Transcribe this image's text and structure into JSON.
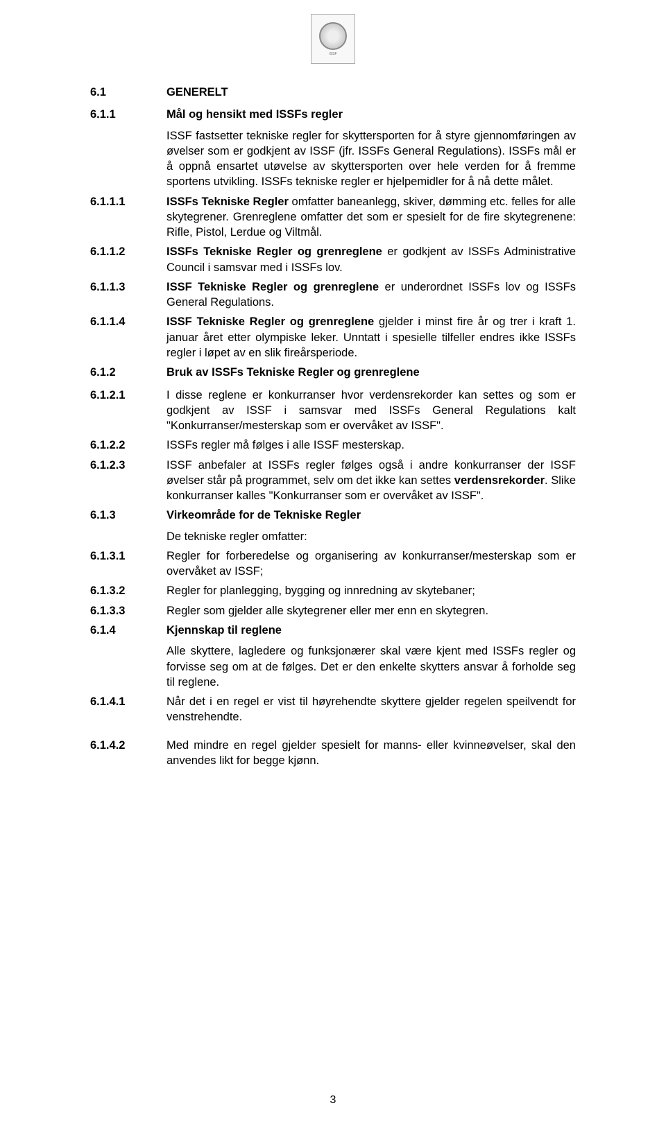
{
  "page_number": "3",
  "rows": [
    {
      "num": "6.1",
      "heading": "GENERELT",
      "text": ""
    },
    {
      "num": "6.1.1",
      "heading": "Mål og hensikt med ISSFs regler",
      "text": "ISSF fastsetter tekniske regler for skyttersporten for å styre gjennomføringen av øvelser som er godkjent av ISSF (jfr. ISSFs General Regulations). ISSFs mål er å oppnå ensartet utøvelse av skyttersporten over hele verden for å fremme sportens utvikling. ISSFs tekniske regler er hjelpemidler for å nå dette målet."
    },
    {
      "num": "6.1.1.1",
      "heading": "",
      "text": "<b>ISSFs Tekniske Regler</b> omfatter baneanlegg, skiver, dømming etc. felles for alle skytegrener. Grenreglene omfatter det som er spesielt for de fire skytegrenene: Rifle, Pistol, Lerdue og Viltmål."
    },
    {
      "num": "6.1.1.2",
      "heading": "",
      "text": "<b>ISSFs Tekniske Regler og grenreglene</b> er godkjent av ISSFs Administrative Council i samsvar med i ISSFs lov."
    },
    {
      "num": "6.1.1.3",
      "heading": "",
      "text": "<b>ISSF Tekniske Regler og grenreglene</b> er underordnet ISSFs lov og ISSFs General Regulations."
    },
    {
      "num": "6.1.1.4",
      "heading": "",
      "text": "<b>ISSF Tekniske Regler og grenreglene</b> gjelder i minst fire år og trer i kraft 1. januar året etter olympiske leker. Unntatt i spesielle tilfeller endres ikke ISSFs regler i løpet av en slik fireårsperiode."
    },
    {
      "num": "6.1.2",
      "heading": "Bruk av ISSFs Tekniske Regler og grenreglene",
      "text": ""
    },
    {
      "num": "6.1.2.1",
      "heading": "",
      "text": "I disse reglene er konkurranser hvor verdensrekorder kan settes og som er godkjent av ISSF i samsvar med ISSFs General Regulations kalt \"Konkurranser/mesterskap som er overvåket av ISSF\"."
    },
    {
      "num": "6.1.2.2",
      "heading": "",
      "text": "ISSFs regler må følges i alle ISSF mesterskap."
    },
    {
      "num": "6.1.2.3",
      "heading": "",
      "text": "ISSF anbefaler at ISSFs regler følges også i andre konkurranser der ISSF øvelser står på programmet, selv om det ikke kan settes <b>verdensrekorder</b>. Slike konkurranser kalles \"Konkurranser som er overvåket av ISSF\"."
    },
    {
      "num": "6.1.3",
      "heading": "Virkeområde for de Tekniske Regler",
      "text": "De tekniske regler omfatter:"
    },
    {
      "num": "6.1.3.1",
      "heading": "",
      "text": "Regler for forberedelse og organisering av konkurranser/mesterskap som er overvåket av ISSF;"
    },
    {
      "num": "6.1.3.2",
      "heading": "",
      "text": "Regler for planlegging, bygging og innredning av skytebaner;"
    },
    {
      "num": "6.1.3.3",
      "heading": "",
      "text": "Regler som gjelder alle skytegrener eller mer enn en skytegren."
    },
    {
      "num": "6.1.4",
      "heading": "Kjennskap til reglene",
      "text": "Alle skyttere, lagledere og funksjonærer skal være kjent med ISSFs regler og forvisse seg om at de følges. Det er den enkelte skytters ansvar å forholde seg til reglene."
    },
    {
      "num": "6.1.4.1",
      "heading": "",
      "text": "Når det i en regel er vist til høyrehendte skyttere gjelder regelen speilvendt for venstrehendte."
    },
    {
      "num": "6.1.4.2",
      "heading": "",
      "text": "Med mindre en regel gjelder spesielt for manns- eller kvinneøvelser, skal den anvendes likt for begge kjønn."
    }
  ]
}
